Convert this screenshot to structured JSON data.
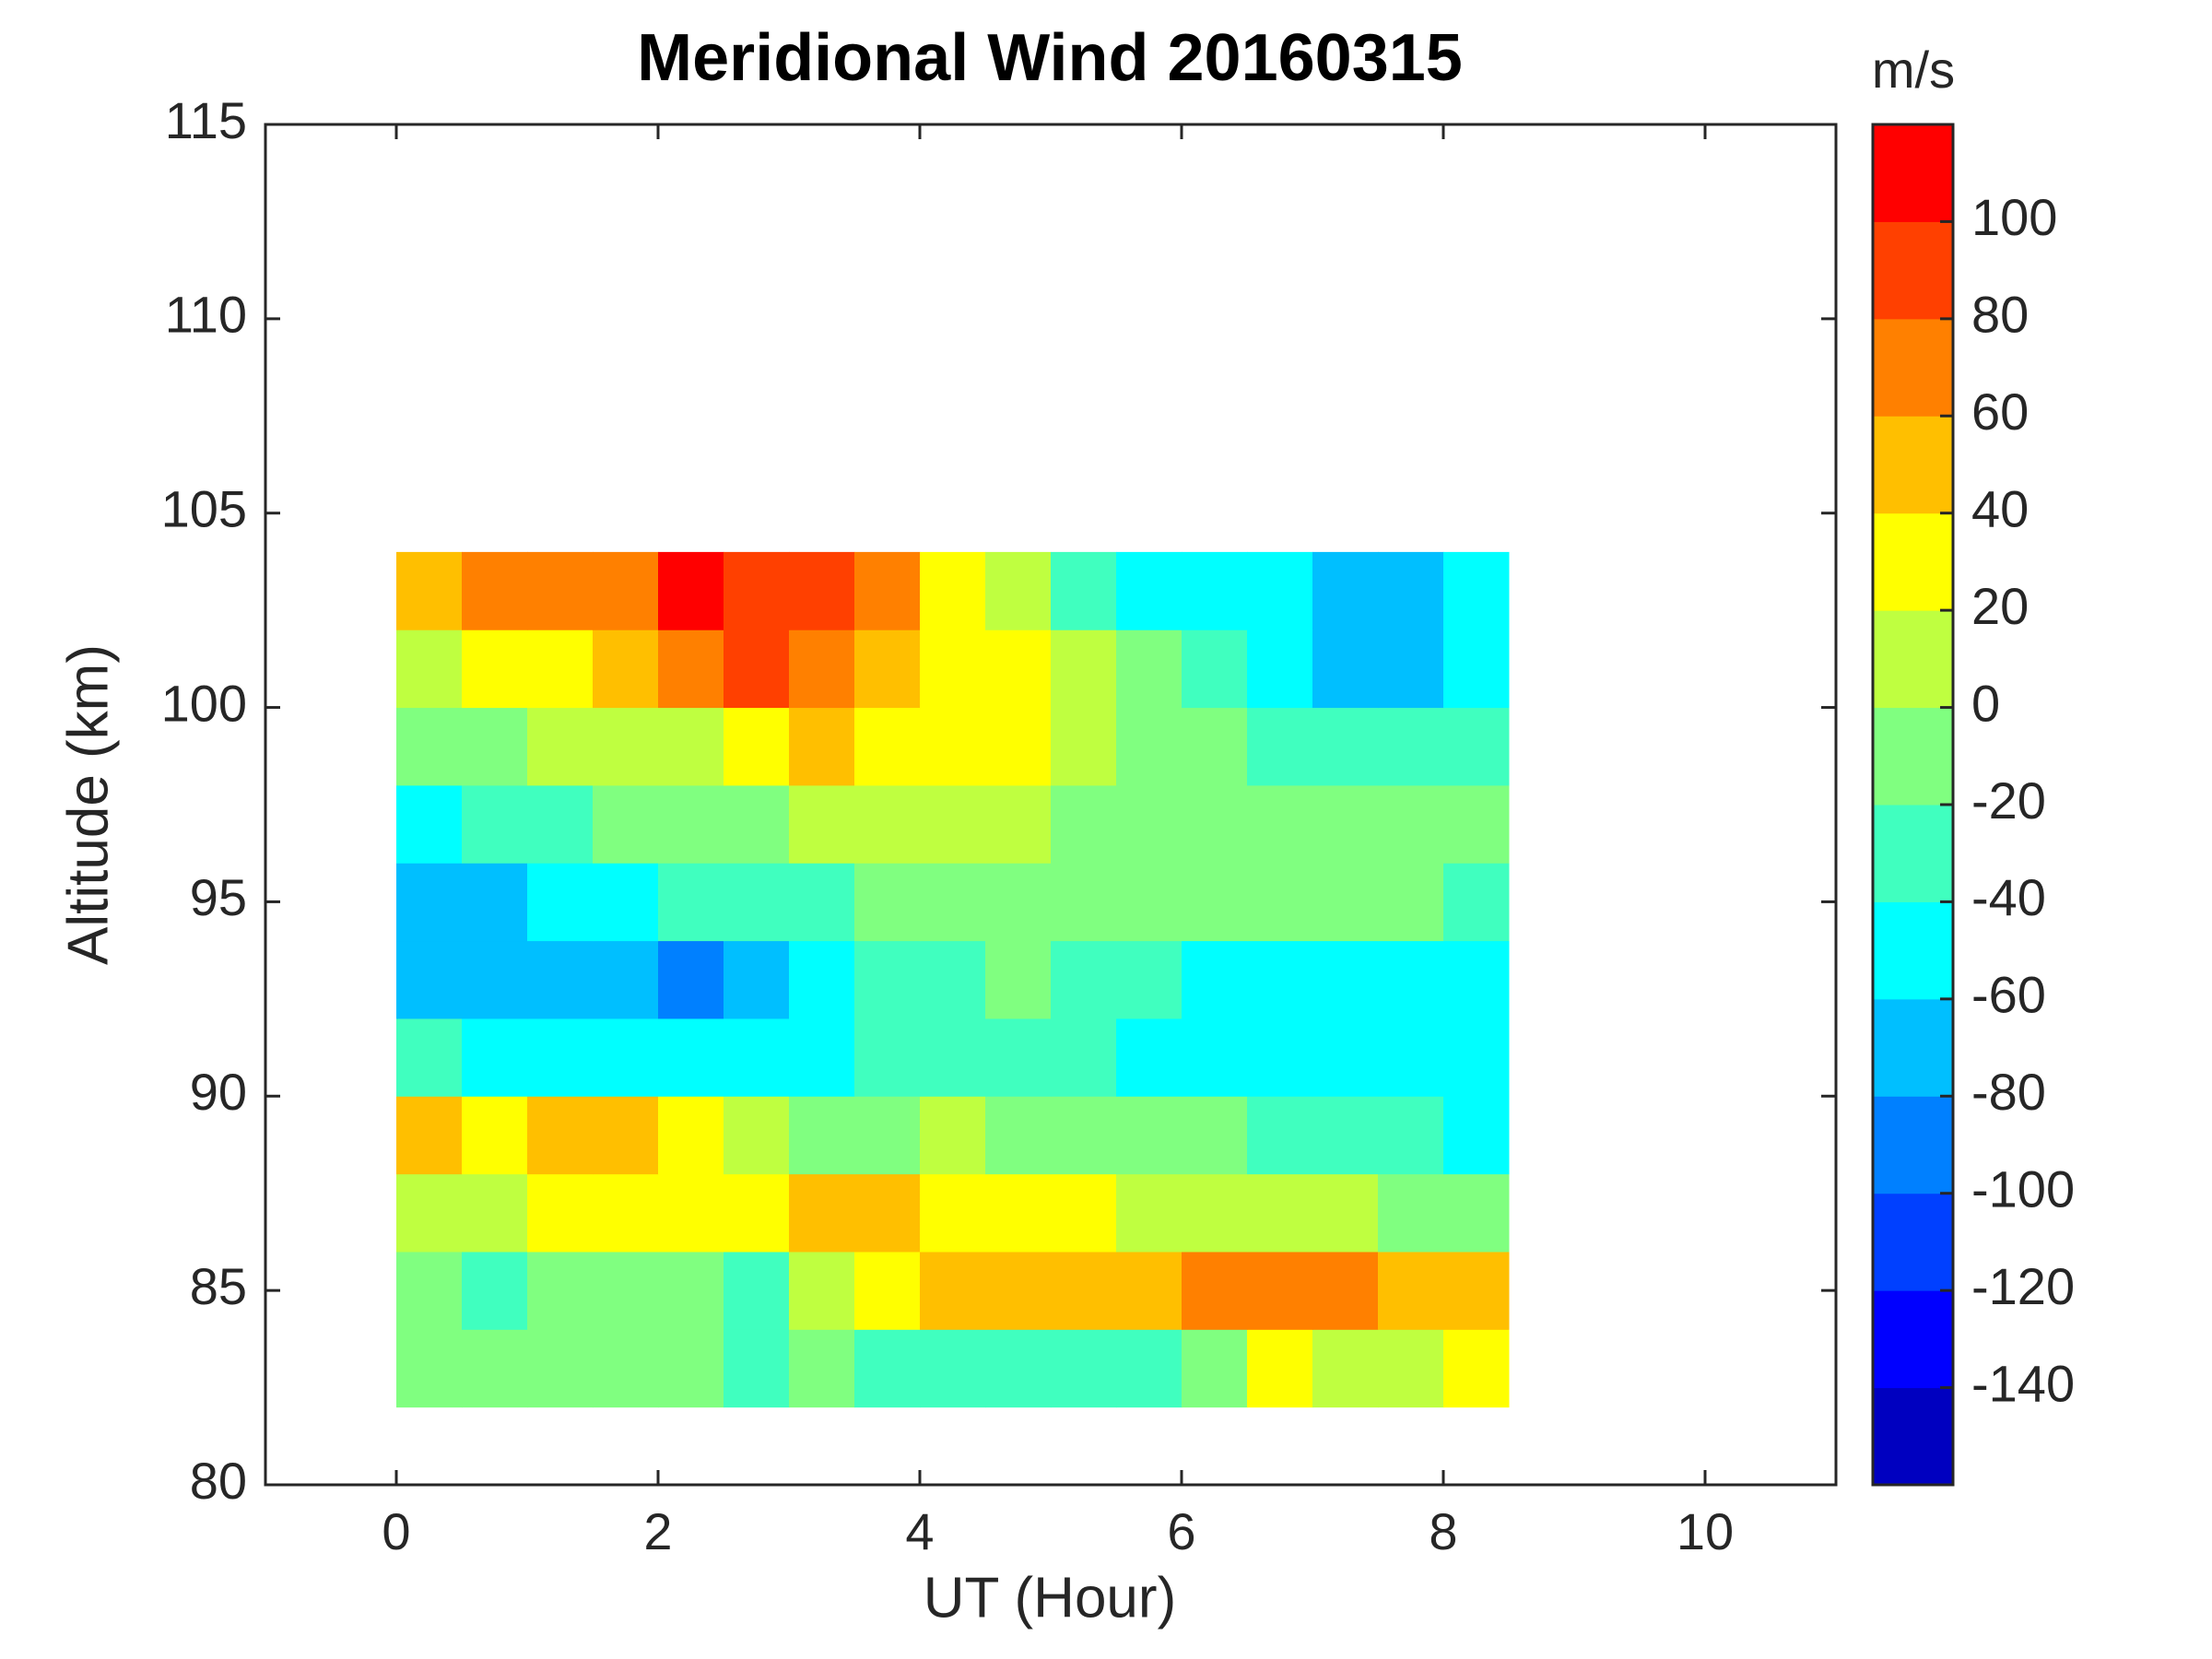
{
  "chart_data": {
    "type": "contour",
    "title": "Meridional Wind 20160315",
    "xlabel": "UT (Hour)",
    "ylabel": "Altitude (km)",
    "colorbar_label": "m/s",
    "x": [
      0.25,
      0.75,
      1.25,
      1.75,
      2.25,
      2.75,
      3.25,
      3.75,
      4.25,
      4.75,
      5.25,
      5.75,
      6.25,
      6.75,
      7.25,
      7.75,
      8.25
    ],
    "y": [
      83,
      85,
      87,
      89,
      91,
      93,
      95,
      97,
      99,
      101,
      103
    ],
    "z": [
      [
        -20,
        -20,
        -20,
        -10,
        -20,
        -30,
        -20,
        -30,
        -30,
        -30,
        -30,
        -30,
        -20,
        20,
        10,
        10,
        30
      ],
      [
        -20,
        -30,
        -20,
        -20,
        -20,
        -30,
        0,
        20,
        40,
        50,
        40,
        50,
        60,
        60,
        70,
        50,
        50
      ],
      [
        10,
        10,
        20,
        20,
        30,
        30,
        40,
        40,
        30,
        20,
        20,
        10,
        10,
        0,
        0,
        -10,
        -20
      ],
      [
        40,
        30,
        40,
        40,
        20,
        0,
        -10,
        -10,
        0,
        -10,
        -10,
        -20,
        -20,
        -40,
        -40,
        -40,
        -50
      ],
      [
        -40,
        -50,
        -50,
        -60,
        -60,
        -60,
        -50,
        -40,
        -30,
        -30,
        -40,
        -50,
        -60,
        -60,
        -60,
        -50,
        -50
      ],
      [
        -80,
        -80,
        -80,
        -80,
        -90,
        -70,
        -50,
        -40,
        -30,
        -20,
        -30,
        -40,
        -50,
        -50,
        -50,
        -50,
        -50
      ],
      [
        -80,
        -70,
        -60,
        -50,
        -40,
        -40,
        -30,
        -20,
        -20,
        -10,
        -10,
        -10,
        -10,
        -20,
        -20,
        -20,
        -30
      ],
      [
        -50,
        -40,
        -30,
        -20,
        -20,
        -10,
        0,
        10,
        0,
        0,
        -10,
        -10,
        -20,
        -20,
        -20,
        -20,
        -20
      ],
      [
        -20,
        -10,
        0,
        0,
        10,
        20,
        40,
        30,
        30,
        20,
        0,
        -10,
        -20,
        -30,
        -40,
        -40,
        -40
      ],
      [
        10,
        30,
        30,
        40,
        70,
        80,
        70,
        50,
        30,
        20,
        0,
        -20,
        -40,
        -60,
        -80,
        -70,
        -60
      ],
      [
        40,
        60,
        60,
        60,
        100,
        90,
        80,
        60,
        20,
        0,
        -40,
        -60,
        -60,
        -60,
        -70,
        -70,
        -60
      ]
    ],
    "xlim": [
      -1,
      11
    ],
    "xticks": [
      0,
      2,
      4,
      6,
      8,
      10
    ],
    "ylim": [
      80,
      115
    ],
    "yticks": [
      80,
      85,
      90,
      95,
      100,
      105,
      110,
      115
    ],
    "levels": [
      -160,
      -140,
      -120,
      -100,
      -80,
      -60,
      -40,
      -20,
      0,
      20,
      40,
      60,
      80,
      100,
      120
    ],
    "colors": [
      "#0000c0",
      "#0000ff",
      "#0040ff",
      "#0080ff",
      "#00bfff",
      "#00ffff",
      "#40ffbf",
      "#80ff80",
      "#bfff40",
      "#ffff00",
      "#ffbf00",
      "#ff8000",
      "#ff4000",
      "#ff0000"
    ],
    "cticks": [
      -140,
      -120,
      -100,
      -80,
      -60,
      -40,
      -20,
      0,
      20,
      40,
      60,
      80,
      100
    ],
    "grid": false
  }
}
